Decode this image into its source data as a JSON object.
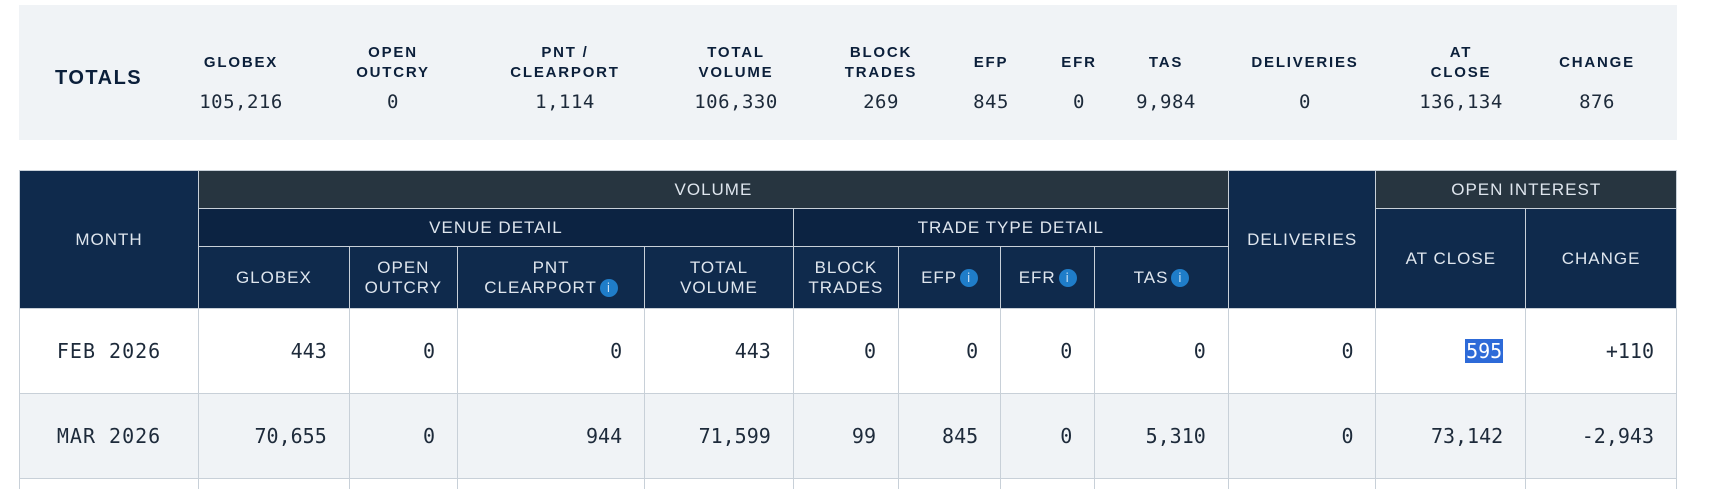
{
  "totals": {
    "label": "TOTALS",
    "columns": [
      {
        "header": "GLOBEX",
        "value": "105,216"
      },
      {
        "header": "OPEN\nOUTCRY",
        "value": "0"
      },
      {
        "header": "PNT /\nCLEARPORT",
        "value": "1,114"
      },
      {
        "header": "TOTAL\nVOLUME",
        "value": "106,330"
      },
      {
        "header": "BLOCK\nTRADES",
        "value": "269"
      },
      {
        "header": "EFP",
        "value": "845"
      },
      {
        "header": "EFR",
        "value": "0"
      },
      {
        "header": "TAS",
        "value": "9,984"
      },
      {
        "header": "DELIVERIES",
        "value": "0"
      },
      {
        "header": "AT\nCLOSE",
        "value": "136,134"
      },
      {
        "header": "CHANGE",
        "value": "876"
      }
    ]
  },
  "table": {
    "groups": {
      "month": "MONTH",
      "volume": "VOLUME",
      "venue_detail": "VENUE DETAIL",
      "trade_type_detail": "TRADE TYPE DETAIL",
      "deliveries": "DELIVERIES",
      "open_interest": "OPEN INTEREST"
    },
    "headers": {
      "globex": "GLOBEX",
      "open_outcry_1": "OPEN",
      "open_outcry_2": "OUTCRY",
      "pnt_1": "PNT",
      "pnt_2": "CLEARPORT",
      "total_volume_1": "TOTAL",
      "total_volume_2": "VOLUME",
      "block_trades_1": "BLOCK",
      "block_trades_2": "TRADES",
      "efp": "EFP",
      "efr": "EFR",
      "tas": "TAS",
      "at_close": "AT CLOSE",
      "change": "CHANGE"
    },
    "rows": [
      {
        "month": "FEB 2026",
        "globex": "443",
        "open_outcry": "0",
        "pnt_clearport": "0",
        "total_volume": "443",
        "block_trades": "0",
        "efp": "0",
        "efr": "0",
        "tas": "0",
        "deliveries": "0",
        "at_close": "595",
        "change": "+110"
      },
      {
        "month": "MAR 2026",
        "globex": "70,655",
        "open_outcry": "0",
        "pnt_clearport": "944",
        "total_volume": "71,599",
        "block_trades": "99",
        "efp": "845",
        "efr": "0",
        "tas": "5,310",
        "deliveries": "0",
        "at_close": "73,142",
        "change": "-2,943"
      }
    ]
  },
  "colors": {
    "header_dark": "#273540",
    "header_navy": "#0f2a4c",
    "positive": "#1a8a1a",
    "negative": "#e0211d",
    "selection": "#2d6ad8"
  },
  "icons": {
    "info": "info-icon"
  }
}
